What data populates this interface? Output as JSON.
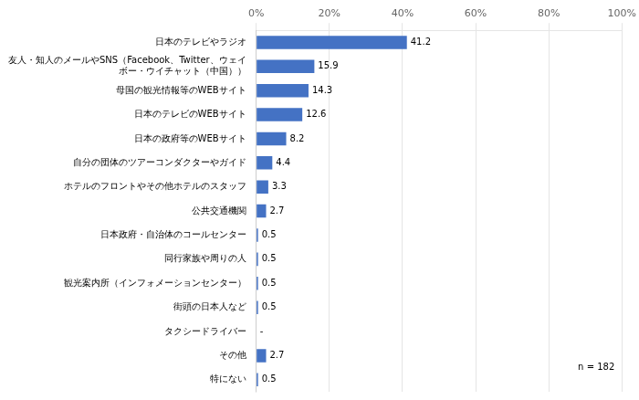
{
  "chart_data": {
    "type": "bar",
    "orientation": "horizontal",
    "categories": [
      "日本のテレビやラジオ",
      "友人・知人のメールやSNS（Facebook、Twitter、ウェイボー・ウイチャット（中国））",
      "母国の観光情報等のWEBサイト",
      "日本のテレビのWEBサイト",
      "日本の政府等のWEBサイト",
      "自分の団体のツアーコンダクターやガイド",
      "ホテルのフロントやその他ホテルのスタッフ",
      "公共交通機関",
      "日本政府・自治体のコールセンター",
      "同行家族や周りの人",
      "観光案内所（インフォメーションセンター）",
      "街頭の日本人など",
      "タクシードライバー",
      "その他",
      "特にない"
    ],
    "values": [
      41.2,
      15.9,
      14.3,
      12.6,
      8.2,
      4.4,
      3.3,
      2.7,
      0.5,
      0.5,
      0.5,
      0.5,
      0,
      2.7,
      0.5
    ],
    "value_labels": [
      "41.2",
      "15.9",
      "14.3",
      "12.6",
      "8.2",
      "4.4",
      "3.3",
      "2.7",
      "0.5",
      "0.5",
      "0.5",
      "0.5",
      "-",
      "2.7",
      "0.5"
    ],
    "data_labels": true,
    "color": "#4472C4",
    "xlim": [
      0,
      100
    ],
    "xticks": [
      {
        "value": 0,
        "label": "0%"
      },
      {
        "value": 20,
        "label": "20%"
      },
      {
        "value": 40,
        "label": "40%"
      },
      {
        "value": 60,
        "label": "60%"
      },
      {
        "value": 80,
        "label": "80%"
      },
      {
        "value": 100,
        "label": "100%"
      }
    ],
    "grid": true,
    "annotations": [
      "n = 182"
    ]
  }
}
